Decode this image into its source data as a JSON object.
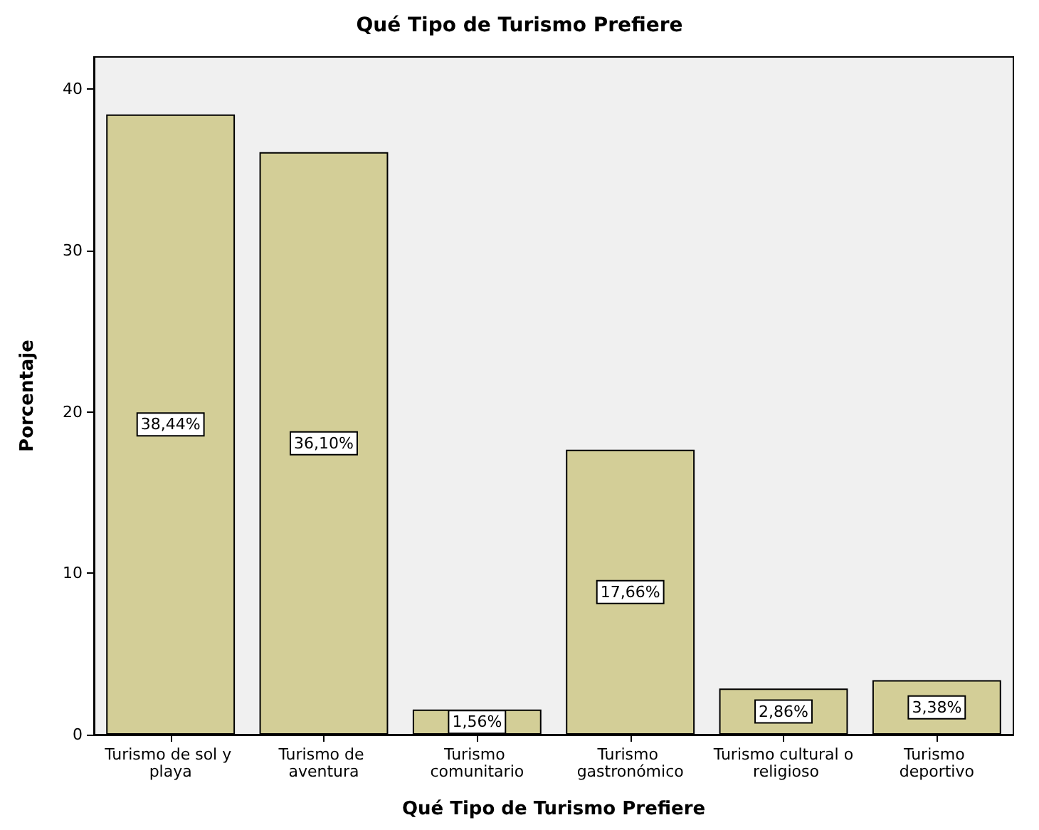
{
  "chart_data": {
    "type": "bar",
    "title": "Qué Tipo de Turismo Prefiere",
    "xlabel": "Qué Tipo de Turismo Prefiere",
    "ylabel": "Porcentaje",
    "categories": [
      "Turismo de sol y playa",
      "Turismo de aventura",
      "Turismo comunitario",
      "Turismo gastronómico",
      "Turismo cultural o religioso",
      "Turismo deportivo"
    ],
    "values": [
      38.44,
      36.1,
      1.56,
      17.66,
      2.86,
      3.38
    ],
    "value_labels": [
      "38,44%",
      "36,10%",
      "1,56%",
      "17,66%",
      "2,86%",
      "3,38%"
    ],
    "color": "#d3ce97",
    "ylim": [
      0,
      42
    ],
    "yticks": [
      0,
      10,
      20,
      30,
      40
    ],
    "grid": false
  }
}
